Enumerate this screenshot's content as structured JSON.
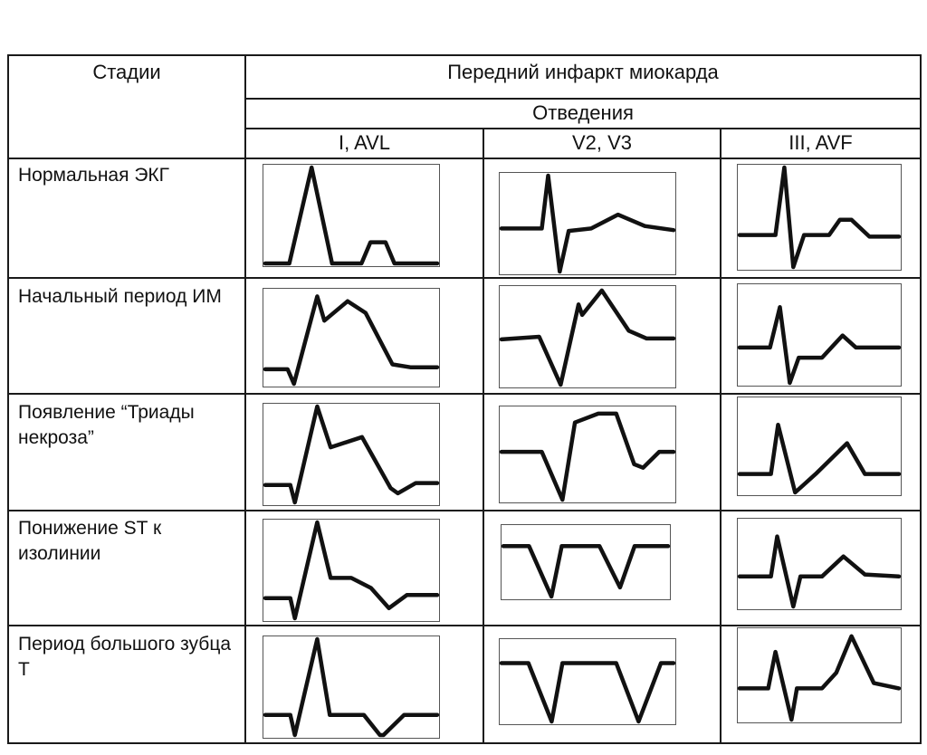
{
  "table": {
    "stage_header": "Стадии",
    "title": "Передний инфаркт миокарда",
    "leads_header": "Отведения",
    "columns": [
      "I, AVL",
      "V2, V3",
      "III, AVF"
    ],
    "rows": [
      {
        "label": "Нормальная ЭКГ",
        "waves": [
          [
            [
              0,
              77
            ],
            [
              27,
              77
            ],
            [
              52,
              0
            ],
            [
              75,
              77
            ],
            [
              108,
              77
            ],
            [
              118,
              60
            ],
            [
              135,
              60
            ],
            [
              145,
              77
            ],
            [
              193,
              77
            ]
          ],
          [
            [
              0,
              65
            ],
            [
              45,
              65
            ],
            [
              52,
              0
            ],
            [
              65,
              118
            ],
            [
              75,
              68
            ],
            [
              100,
              65
            ],
            [
              130,
              48
            ],
            [
              160,
              62
            ],
            [
              192,
              67
            ]
          ],
          [
            [
              0,
              80
            ],
            [
              40,
              80
            ],
            [
              50,
              0
            ],
            [
              60,
              118
            ],
            [
              72,
              80
            ],
            [
              100,
              80
            ],
            [
              112,
              62
            ],
            [
              125,
              62
            ],
            [
              145,
              82
            ],
            [
              178,
              82
            ]
          ]
        ]
      },
      {
        "label": "Начальный период ИМ",
        "waves": [
          [
            [
              0,
              80
            ],
            [
              25,
              80
            ],
            [
              32,
              95
            ],
            [
              58,
              5
            ],
            [
              66,
              30
            ],
            [
              92,
              10
            ],
            [
              112,
              22
            ],
            [
              142,
              75
            ],
            [
              162,
              78
            ],
            [
              192,
              78
            ]
          ],
          [
            [
              0,
              58
            ],
            [
              42,
              55
            ],
            [
              66,
              110
            ],
            [
              86,
              18
            ],
            [
              90,
              30
            ],
            [
              112,
              2
            ],
            [
              142,
              48
            ],
            [
              162,
              57
            ],
            [
              192,
              57
            ]
          ],
          [
            [
              0,
              60
            ],
            [
              34,
              60
            ],
            [
              45,
              20
            ],
            [
              56,
              95
            ],
            [
              66,
              70
            ],
            [
              92,
              70
            ],
            [
              115,
              48
            ],
            [
              130,
              60
            ],
            [
              178,
              60
            ]
          ]
        ]
      },
      {
        "label": "Появление “Триады некроза”",
        "waves": [
          [
            [
              0,
              77
            ],
            [
              28,
              77
            ],
            [
              33,
              94
            ],
            [
              58,
              0
            ],
            [
              73,
              40
            ],
            [
              108,
              30
            ],
            [
              140,
              80
            ],
            [
              148,
              85
            ],
            [
              168,
              75
            ],
            [
              192,
              75
            ]
          ],
          [
            [
              0,
              48
            ],
            [
              45,
              48
            ],
            [
              68,
              102
            ],
            [
              82,
              15
            ],
            [
              108,
              5
            ],
            [
              128,
              5
            ],
            [
              148,
              62
            ],
            [
              158,
              66
            ],
            [
              176,
              48
            ],
            [
              192,
              48
            ]
          ],
          [
            [
              0,
              60
            ],
            [
              35,
              60
            ],
            [
              43,
              20
            ],
            [
              62,
              75
            ],
            [
              85,
              60
            ],
            [
              120,
              35
            ],
            [
              140,
              60
            ],
            [
              178,
              60
            ]
          ]
        ]
      },
      {
        "label": "Понижение ST к изолинии",
        "waves": [
          [
            [
              0,
              75
            ],
            [
              28,
              75
            ],
            [
              33,
              95
            ],
            [
              58,
              0
            ],
            [
              73,
              55
            ],
            [
              96,
              55
            ],
            [
              118,
              65
            ],
            [
              138,
              85
            ],
            [
              158,
              72
            ],
            [
              192,
              72
            ]
          ],
          [
            [
              0,
              20
            ],
            [
              30,
              20
            ],
            [
              56,
              75
            ],
            [
              68,
              20
            ],
            [
              112,
              20
            ],
            [
              136,
              65
            ],
            [
              153,
              20
            ],
            [
              192,
              20
            ]
          ],
          [
            [
              0,
              55
            ],
            [
              35,
              55
            ],
            [
              42,
              15
            ],
            [
              60,
              85
            ],
            [
              68,
              55
            ],
            [
              92,
              55
            ],
            [
              116,
              35
            ],
            [
              140,
              53
            ],
            [
              178,
              55
            ]
          ]
        ]
      },
      {
        "label": "Период большого зубца Т",
        "waves": [
          [
            [
              0,
              75
            ],
            [
              28,
              75
            ],
            [
              33,
              95
            ],
            [
              58,
              0
            ],
            [
              72,
              75
            ],
            [
              110,
              75
            ],
            [
              128,
              95
            ],
            [
              132,
              95
            ],
            [
              155,
              75
            ],
            [
              192,
              75
            ]
          ],
          [
            [
              0,
              20
            ],
            [
              30,
              20
            ],
            [
              56,
              75
            ],
            [
              68,
              20
            ],
            [
              128,
              20
            ],
            [
              153,
              75
            ],
            [
              178,
              20
            ],
            [
              192,
              20
            ]
          ],
          [
            [
              0,
              55
            ],
            [
              32,
              55
            ],
            [
              40,
              20
            ],
            [
              58,
              85
            ],
            [
              64,
              55
            ],
            [
              92,
              55
            ],
            [
              108,
              40
            ],
            [
              125,
              5
            ],
            [
              150,
              50
            ],
            [
              178,
              55
            ]
          ]
        ]
      }
    ]
  }
}
